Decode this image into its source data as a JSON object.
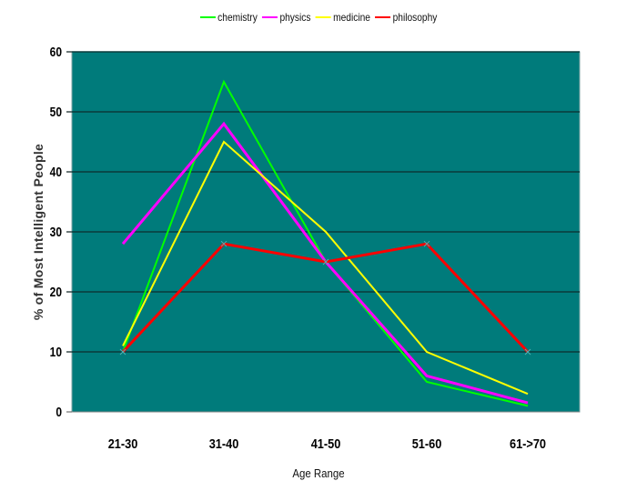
{
  "chart_data": {
    "type": "line",
    "title": "",
    "xlabel": "Age Range",
    "ylabel": "% of Most Intelligent People",
    "categories": [
      "21-30",
      "31-40",
      "41-50",
      "51-60",
      "61->70"
    ],
    "ylim": [
      0,
      60
    ],
    "yticks": [
      "0",
      "10",
      "20",
      "30",
      "40",
      "50",
      "60"
    ],
    "grid": true,
    "legend_position": "top",
    "plot_background": "#007B7B",
    "series": [
      {
        "name": "chemistry",
        "color": "#00FF00",
        "values": [
          10,
          55,
          25,
          5,
          1
        ]
      },
      {
        "name": "physics",
        "color": "#FF00FF",
        "values": [
          28,
          48,
          25,
          6,
          1.5
        ]
      },
      {
        "name": "medicine",
        "color": "#FFFF00",
        "values": [
          11,
          45,
          30,
          10,
          3
        ]
      },
      {
        "name": "philosophy",
        "color": "#FF0000",
        "values": [
          10,
          28,
          25,
          28,
          10
        ]
      }
    ]
  },
  "legend": {
    "items": [
      {
        "label": "chemistry",
        "color": "#00FF00"
      },
      {
        "label": "physics",
        "color": "#FF00FF"
      },
      {
        "label": "medicine",
        "color": "#FFFF00"
      },
      {
        "label": "philosophy",
        "color": "#FF0000"
      }
    ]
  },
  "axes": {
    "x_title": "Age Range",
    "y_title": "% of Most Intelligent People",
    "x_ticks": [
      "21-30",
      "31-40",
      "41-50",
      "51-60",
      "61->70"
    ],
    "y_ticks": [
      "0",
      "10",
      "20",
      "30",
      "40",
      "50",
      "60"
    ]
  }
}
